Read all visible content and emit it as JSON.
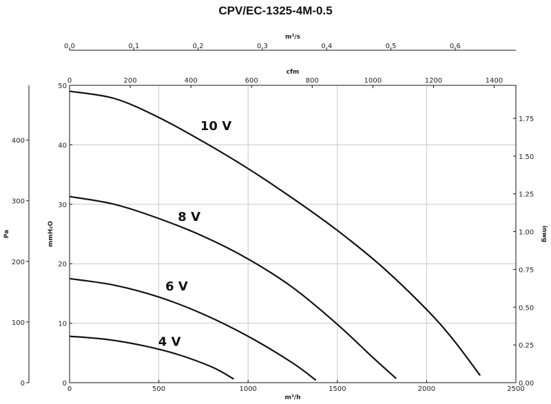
{
  "chart_data": {
    "type": "line",
    "title": "CPV/EC-1325-4M-0.5",
    "xlabel": "m³/h",
    "ylabel": "mmH₂O",
    "xlim": [
      0,
      2500
    ],
    "ylim": [
      0,
      50
    ],
    "x_ticks": [
      "0",
      "500",
      "1000",
      "1500",
      "2000",
      "2500"
    ],
    "y_ticks": [
      "0",
      "10",
      "20",
      "30",
      "40",
      "50"
    ],
    "grid": true,
    "secondary_axes": {
      "top_m3s": {
        "label": "m³/s",
        "ticks": [
          {
            "v": 0.0,
            "t": "0.0"
          },
          {
            "v": 0.1,
            "t": "0.1"
          },
          {
            "v": 0.2,
            "t": "0.2"
          },
          {
            "v": 0.3,
            "t": "0.3"
          },
          {
            "v": 0.4,
            "t": "0.4"
          },
          {
            "v": 0.5,
            "t": "0.5"
          },
          {
            "v": 0.6,
            "t": "0.6"
          }
        ]
      },
      "top_cfm": {
        "label": "cfm",
        "ticks": [
          {
            "v": 0,
            "t": "0"
          },
          {
            "v": 200,
            "t": "200"
          },
          {
            "v": 400,
            "t": "400"
          },
          {
            "v": 600,
            "t": "600"
          },
          {
            "v": 800,
            "t": "800"
          },
          {
            "v": 1000,
            "t": "1000"
          },
          {
            "v": 1200,
            "t": "1200"
          },
          {
            "v": 1400,
            "t": "1400"
          }
        ]
      },
      "left_pa": {
        "label": "Pa",
        "ticks": [
          {
            "v": 0,
            "t": "0"
          },
          {
            "v": 100,
            "t": "100"
          },
          {
            "v": 200,
            "t": "200"
          },
          {
            "v": 300,
            "t": "300"
          },
          {
            "v": 400,
            "t": "400"
          }
        ]
      },
      "right_inwg": {
        "label": "inwg",
        "ticks": [
          {
            "v": 0.0,
            "t": "0.00"
          },
          {
            "v": 0.25,
            "t": "0.25"
          },
          {
            "v": 0.5,
            "t": "0.50"
          },
          {
            "v": 0.75,
            "t": "0.75"
          },
          {
            "v": 1.0,
            "t": "1.00"
          },
          {
            "v": 1.25,
            "t": "1.25"
          },
          {
            "v": 1.5,
            "t": "1.50"
          },
          {
            "v": 1.75,
            "t": "1.75"
          }
        ]
      }
    },
    "series": [
      {
        "name": "10 V",
        "x": [
          0,
          250,
          500,
          750,
          1000,
          1250,
          1500,
          1750,
          2000,
          2150,
          2300
        ],
        "y": [
          49.0,
          47.8,
          44.6,
          40.5,
          36.0,
          31.0,
          25.6,
          19.5,
          12.3,
          7.2,
          1.2
        ]
      },
      {
        "name": "8 V",
        "x": [
          0,
          250,
          500,
          750,
          1000,
          1250,
          1500,
          1700,
          1830
        ],
        "y": [
          31.3,
          30.0,
          27.6,
          24.6,
          20.8,
          16.0,
          9.8,
          4.2,
          0.7
        ]
      },
      {
        "name": "6 V",
        "x": [
          0,
          250,
          500,
          750,
          1000,
          1250,
          1380
        ],
        "y": [
          17.5,
          16.4,
          14.4,
          11.5,
          7.8,
          3.3,
          0.4
        ]
      },
      {
        "name": "4 V",
        "x": [
          0,
          200,
          400,
          600,
          800,
          920
        ],
        "y": [
          7.8,
          7.3,
          6.3,
          4.8,
          2.6,
          0.6
        ]
      }
    ]
  }
}
